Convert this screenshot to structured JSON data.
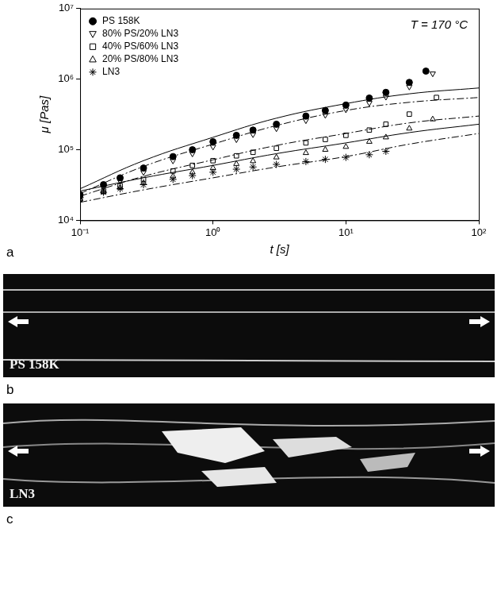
{
  "chart_data": {
    "type": "scatter",
    "x_label": "t [s]",
    "y_label": "μ [Pas]",
    "annotations": [
      "T = 170 °C"
    ],
    "log": true,
    "grid": false,
    "legend": "upper left",
    "xlim": [
      0.1,
      100
    ],
    "ylim": [
      10000,
      10000000
    ],
    "xticks": [
      {
        "value": 0.1,
        "label": "10⁻¹"
      },
      {
        "value": 1,
        "label": "10⁰"
      },
      {
        "value": 10,
        "label": "10¹"
      },
      {
        "value": 100,
        "label": "10²"
      }
    ],
    "yticks": [
      {
        "value": 10000,
        "label": "10⁴"
      },
      {
        "value": 100000,
        "label": "10⁵"
      },
      {
        "value": 1000000,
        "label": "10⁶"
      },
      {
        "value": 10000000,
        "label": "10⁷"
      }
    ],
    "series": [
      {
        "name": "PS 158K",
        "color": "#000000",
        "marker": "filled_circle",
        "x": [
          0.1,
          0.15,
          0.2,
          0.3,
          0.5,
          0.7,
          1,
          1.5,
          2,
          3,
          5,
          7,
          10,
          15,
          20,
          30,
          40
        ],
        "values": [
          23000,
          32000,
          40000,
          55000,
          80000,
          100000,
          130000,
          160000,
          190000,
          230000,
          300000,
          360000,
          430000,
          540000,
          650000,
          900000,
          1300000
        ]
      },
      {
        "name": "80% PS/20% LN3",
        "color": "#000000",
        "marker": "open_triangle_down",
        "x": [
          0.1,
          0.15,
          0.2,
          0.3,
          0.5,
          0.7,
          1,
          1.5,
          2,
          3,
          5,
          7,
          10,
          15,
          20,
          30,
          45
        ],
        "values": [
          21000,
          29000,
          36000,
          48000,
          70000,
          88000,
          110000,
          140000,
          165000,
          200000,
          260000,
          310000,
          370000,
          460000,
          560000,
          780000,
          1200000
        ]
      },
      {
        "name": "40% PS/60% LN3",
        "color": "#000000",
        "marker": "open_square",
        "x": [
          0.1,
          0.15,
          0.2,
          0.3,
          0.5,
          0.7,
          1,
          1.5,
          2,
          3,
          5,
          7,
          10,
          15,
          20,
          30,
          48
        ],
        "values": [
          20000,
          26000,
          31000,
          38000,
          50000,
          60000,
          70000,
          82000,
          92000,
          105000,
          125000,
          140000,
          160000,
          190000,
          230000,
          320000,
          550000
        ]
      },
      {
        "name": "20% PS/80% LN3",
        "color": "#000000",
        "marker": "open_triangle_up",
        "x": [
          0.1,
          0.15,
          0.2,
          0.3,
          0.5,
          0.7,
          1,
          1.5,
          2,
          3,
          5,
          7,
          10,
          15,
          20,
          30,
          45
        ],
        "values": [
          20000,
          25000,
          29000,
          34000,
          42000,
          48000,
          55000,
          63000,
          69000,
          78000,
          90000,
          100000,
          110000,
          130000,
          150000,
          200000,
          270000
        ]
      },
      {
        "name": "LN3",
        "color": "#000000",
        "marker": "star",
        "x": [
          0.1,
          0.15,
          0.2,
          0.3,
          0.5,
          0.7,
          1,
          1.5,
          2,
          3,
          5,
          7,
          10,
          15,
          20
        ],
        "values": [
          21000,
          25000,
          28000,
          32000,
          38000,
          43000,
          48000,
          53000,
          57000,
          62000,
          68000,
          73000,
          78000,
          85000,
          95000
        ]
      },
      {
        "type": "line",
        "line_style": "solid",
        "color": "#000000",
        "x": [
          0.1,
          0.3,
          1,
          3,
          10,
          30,
          100
        ],
        "values": [
          28000,
          70000,
          150000,
          280000,
          450000,
          620000,
          750000
        ]
      },
      {
        "type": "line",
        "line_style": "dashdot",
        "color": "#000000",
        "x": [
          0.1,
          0.3,
          1,
          3,
          10,
          30,
          100
        ],
        "values": [
          24000,
          58000,
          120000,
          220000,
          360000,
          470000,
          550000
        ]
      },
      {
        "type": "line",
        "line_style": "dashdot",
        "color": "#000000",
        "x": [
          0.1,
          0.3,
          1,
          3,
          10,
          30,
          100
        ],
        "values": [
          22000,
          42000,
          72000,
          115000,
          170000,
          240000,
          300000
        ]
      },
      {
        "type": "line",
        "line_style": "solid",
        "color": "#000000",
        "x": [
          0.1,
          0.3,
          1,
          3,
          10,
          30,
          100
        ],
        "values": [
          26000,
          40000,
          60000,
          88000,
          125000,
          175000,
          230000
        ]
      },
      {
        "type": "line",
        "line_style": "dashdot",
        "color": "#000000",
        "x": [
          0.1,
          0.3,
          1,
          3,
          10,
          30,
          100
        ],
        "values": [
          18000,
          27000,
          40000,
          57000,
          80000,
          120000,
          170000
        ]
      }
    ]
  },
  "figure": {
    "chart_panel": "a",
    "images": [
      {
        "panel": "b",
        "label": "PS 158K"
      },
      {
        "panel": "c",
        "label": "LN3"
      }
    ]
  }
}
